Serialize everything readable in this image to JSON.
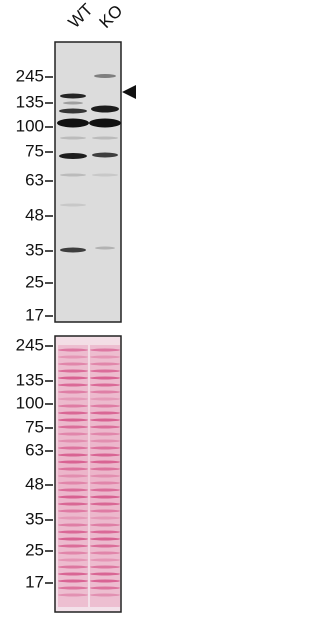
{
  "lanes": [
    "WT",
    "KO"
  ],
  "panels": [
    {
      "markers": [
        "245",
        "135",
        "100",
        "75",
        "63",
        "48",
        "35",
        "25",
        "17"
      ]
    },
    {
      "markers": [
        "245",
        "135",
        "100",
        "75",
        "63",
        "48",
        "35",
        "25",
        "17"
      ]
    }
  ]
}
